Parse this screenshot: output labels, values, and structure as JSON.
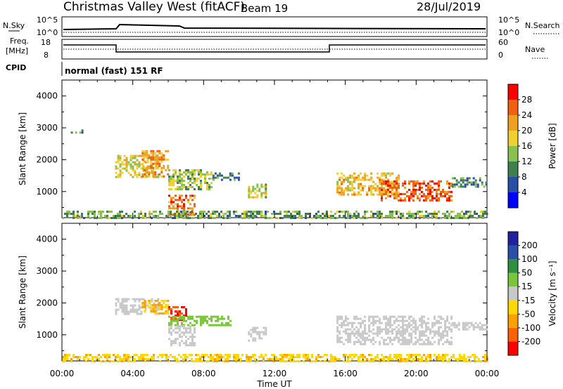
{
  "header": {
    "station": "Christmas Valley West (fitACF)",
    "beam": "Beam 19",
    "date": "28/Jul/2019"
  },
  "panels": {
    "nsky_label": "N.Sky",
    "nsky_ticks": [
      "10^5",
      "10^0"
    ],
    "nsearch_label": "N.Search",
    "nsearch_ticks": [
      "10^5",
      "10^0"
    ],
    "freq_label": "Freq.",
    "freq_unit": "[MHz]",
    "freq_ticks": [
      "18",
      "8"
    ],
    "nave_label": "Nave",
    "nave_ticks": [
      "60",
      "0"
    ],
    "cpid_label": "CPID",
    "cpid_value": "normal (fast) 151 RF"
  },
  "colors": {
    "power": [
      "#0000ff",
      "#2a4da8",
      "#3f7f50",
      "#8ac050",
      "#f0d030",
      "#f0a020",
      "#f06010",
      "#ff0000"
    ],
    "velocity": [
      "#ff0000",
      "#ff6000",
      "#ff9f00",
      "#ffd800",
      "#c8c8c8",
      "#7ac63a",
      "#2f8f3f",
      "#2a4da8",
      "#2020a0"
    ]
  },
  "chart_data": [
    {
      "type": "heatmap",
      "name": "power",
      "ylabel": "Slant Range [km]",
      "xlabel": "Time UT",
      "x_ticks": [
        "00:00",
        "04:00",
        "08:00",
        "12:00",
        "16:00",
        "20:00",
        "00:00"
      ],
      "y_ticks": [
        1000,
        2000,
        3000,
        4000
      ],
      "xlim_hours": [
        0,
        24
      ],
      "ylim_km": [
        180,
        4500
      ],
      "colorbar_label": "Power [dB]",
      "colorbar_ticks": [
        "4",
        "8",
        "12",
        "16",
        "20",
        "24",
        "28"
      ],
      "colorbar_range": [
        0,
        32
      ],
      "regions": [
        {
          "t0": 0.5,
          "t1": 1.2,
          "r0": 2850,
          "r1": 2950,
          "v": 10
        },
        {
          "t0": 3.0,
          "t1": 5.5,
          "r0": 1450,
          "r1": 2150,
          "v": 17
        },
        {
          "t0": 4.5,
          "t1": 6.0,
          "r0": 1500,
          "r1": 2300,
          "v": 22
        },
        {
          "t0": 6.0,
          "t1": 8.5,
          "r0": 1100,
          "r1": 1700,
          "v": 15
        },
        {
          "t0": 8.5,
          "t1": 10.0,
          "r0": 1400,
          "r1": 1600,
          "v": 10
        },
        {
          "t0": 10.5,
          "t1": 11.5,
          "r0": 850,
          "r1": 1250,
          "v": 16
        },
        {
          "t0": 15.5,
          "t1": 19.0,
          "r0": 900,
          "r1": 1600,
          "v": 20
        },
        {
          "t0": 18.0,
          "t1": 22.0,
          "r0": 700,
          "r1": 1350,
          "v": 26
        },
        {
          "t0": 22.0,
          "t1": 24.0,
          "r0": 1150,
          "r1": 1450,
          "v": 9
        },
        {
          "t0": 6.0,
          "t1": 7.5,
          "r0": 250,
          "r1": 900,
          "v": 24
        },
        {
          "t0": 0.0,
          "t1": 24.0,
          "r0": 180,
          "r1": 400,
          "v": 12
        }
      ]
    },
    {
      "type": "heatmap",
      "name": "velocity",
      "ylabel": "Slant Range [km]",
      "xlabel": "Time UT",
      "x_ticks": [
        "00:00",
        "04:00",
        "08:00",
        "12:00",
        "16:00",
        "20:00",
        "00:00"
      ],
      "y_ticks": [
        1000,
        2000,
        3000,
        4000
      ],
      "xlim_hours": [
        0,
        24
      ],
      "ylim_km": [
        180,
        4500
      ],
      "colorbar_label": "Velocity [m s⁻¹]",
      "colorbar_ticks": [
        "200",
        "100",
        "50",
        "15",
        "-15",
        "-50",
        "-100",
        "-200"
      ],
      "colorbar_range": [
        -250,
        250
      ],
      "regions": [
        {
          "t0": 3.0,
          "t1": 5.5,
          "r0": 1650,
          "r1": 2150,
          "v": 0
        },
        {
          "t0": 4.5,
          "t1": 6.0,
          "r0": 1700,
          "r1": 2100,
          "v": -50
        },
        {
          "t0": 6.0,
          "t1": 7.0,
          "r0": 1500,
          "r1": 1900,
          "v": -200
        },
        {
          "t0": 6.0,
          "t1": 9.5,
          "r0": 1300,
          "r1": 1600,
          "v": 30
        },
        {
          "t0": 6.0,
          "t1": 7.5,
          "r0": 700,
          "r1": 1300,
          "v": 0
        },
        {
          "t0": 10.5,
          "t1": 11.5,
          "r0": 850,
          "r1": 1250,
          "v": 0
        },
        {
          "t0": 15.5,
          "t1": 22.0,
          "r0": 700,
          "r1": 1600,
          "v": 0
        },
        {
          "t0": 22.0,
          "t1": 24.0,
          "r0": 1150,
          "r1": 1400,
          "v": 0
        },
        {
          "t0": 0.0,
          "t1": 24.0,
          "r0": 180,
          "r1": 400,
          "v": -40
        }
      ]
    }
  ]
}
